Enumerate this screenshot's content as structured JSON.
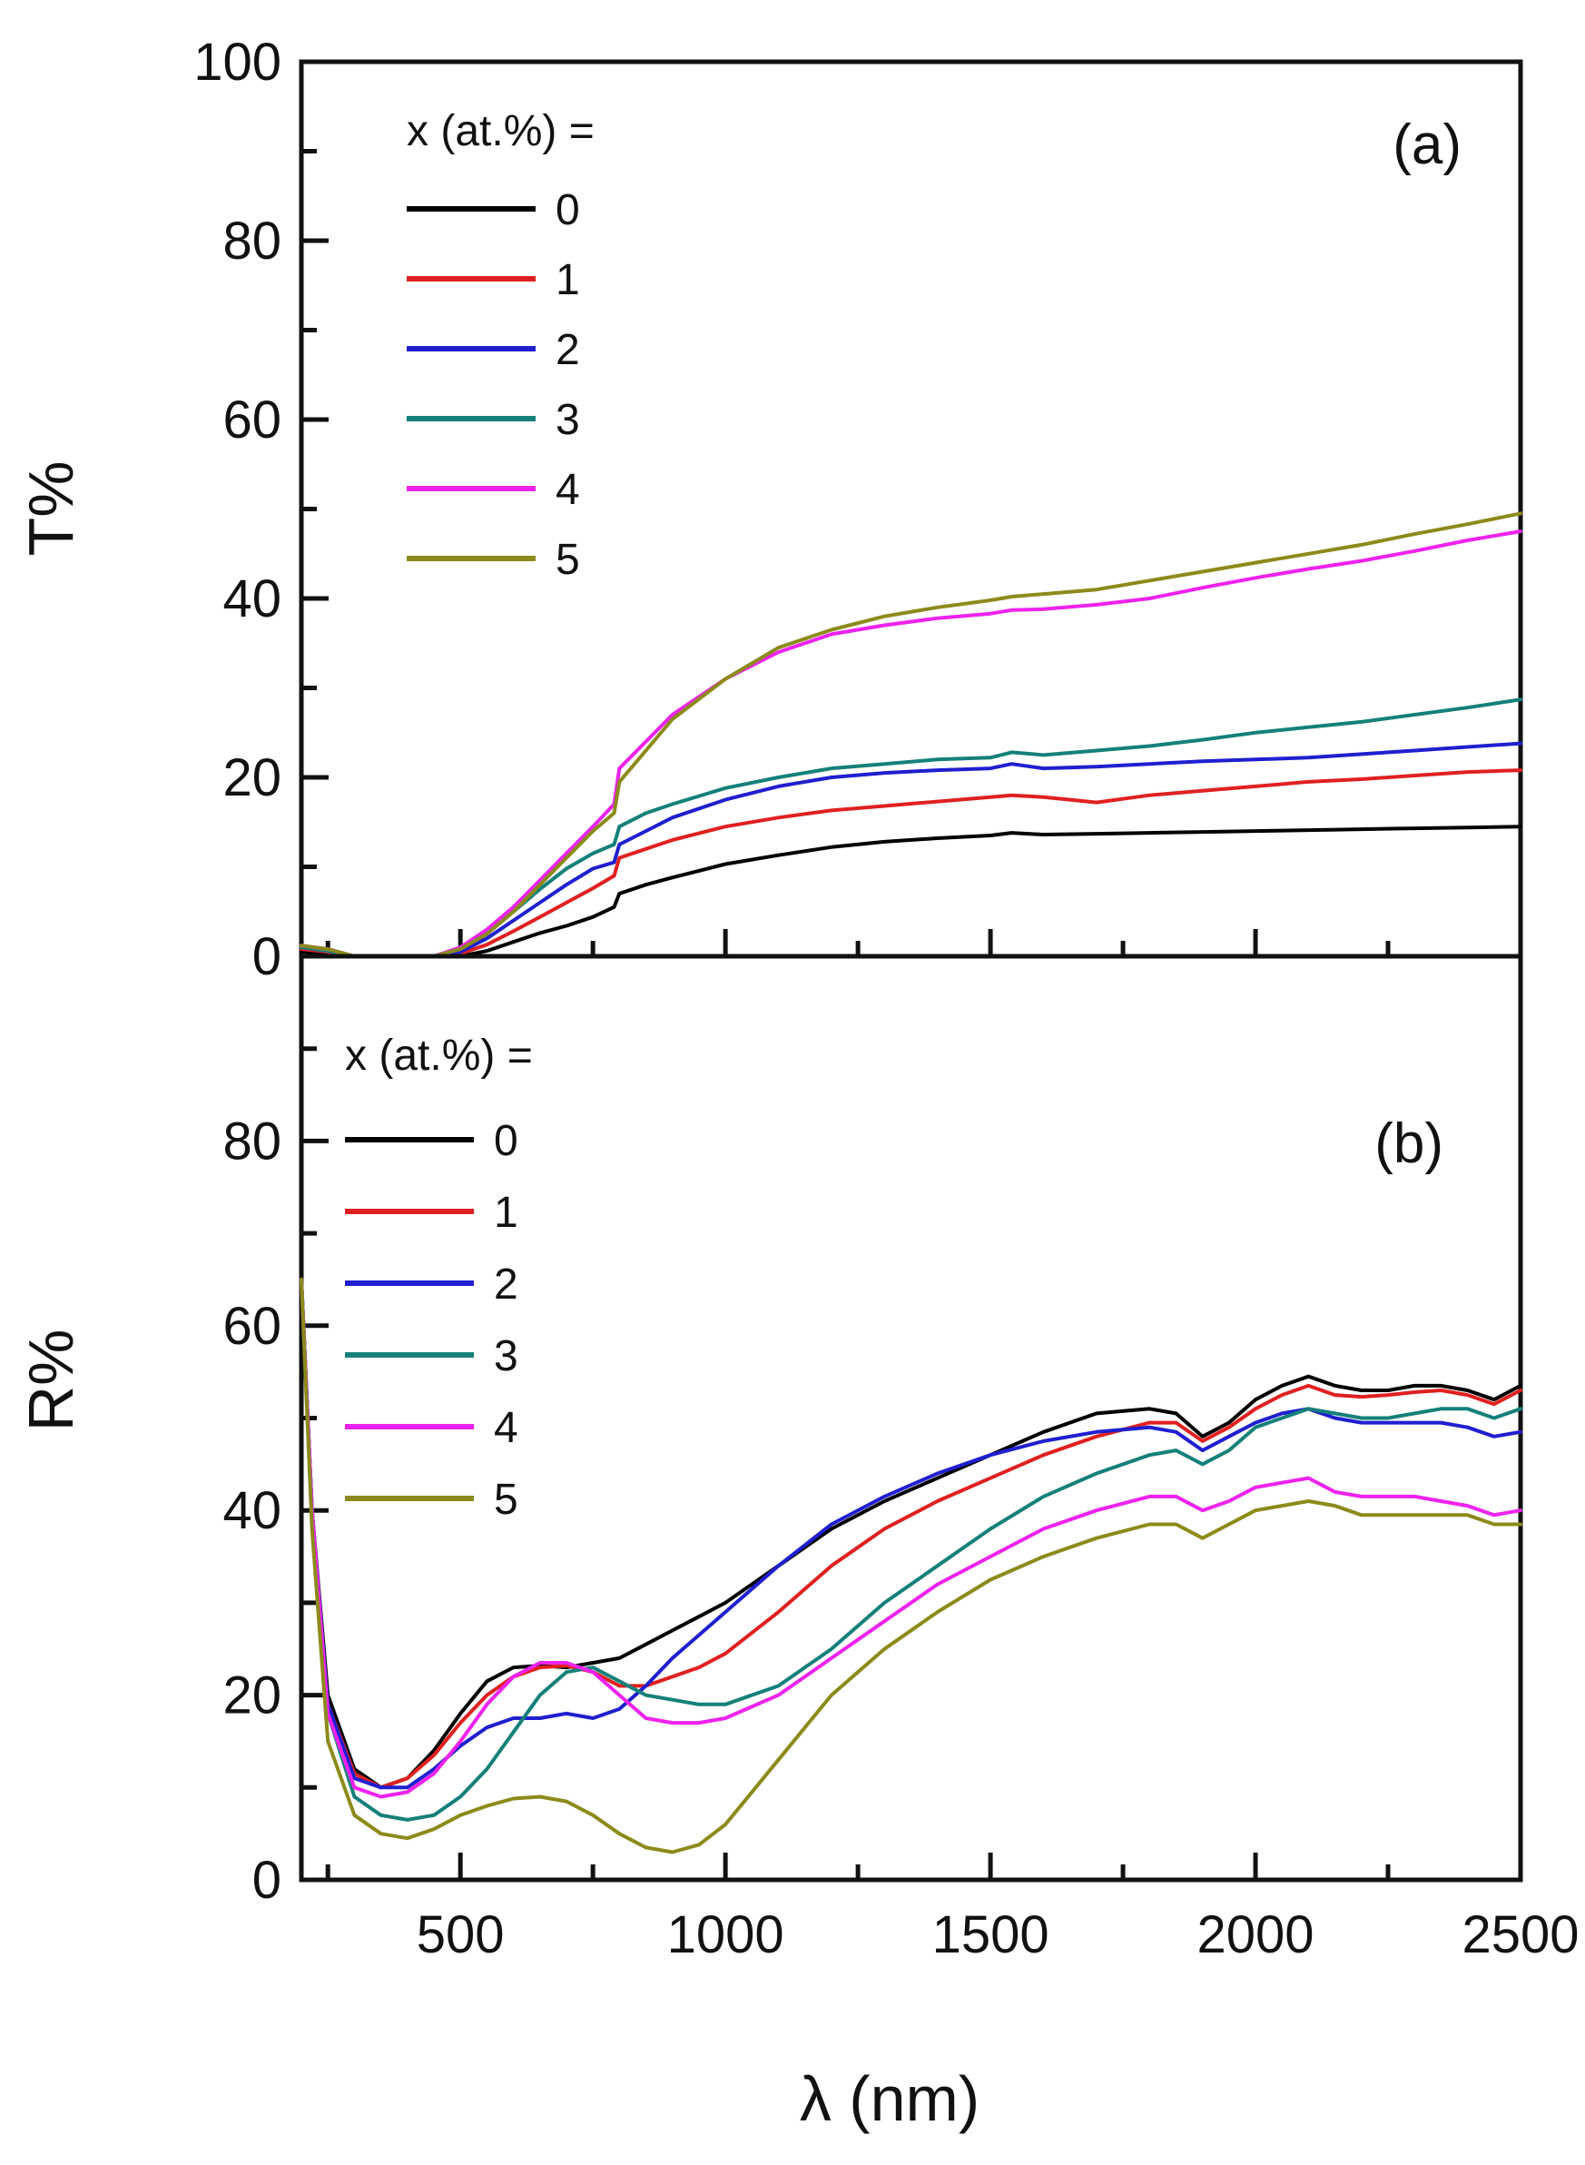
{
  "chart_data": [
    {
      "type": "line",
      "panel_label": "(a)",
      "ylabel": "T%",
      "xlabel": "λ (nm)",
      "xlim": [
        200,
        2500
      ],
      "ylim": [
        0,
        100
      ],
      "y_ticks": [
        0,
        20,
        40,
        60,
        80,
        100
      ],
      "x_ticks": [
        500,
        1000,
        1500,
        2000,
        2500
      ],
      "legend_title": "x (at.%) =",
      "legend_position": "top-left",
      "series": [
        {
          "name": "0",
          "color": "#000000",
          "x": [
            200,
            250,
            300,
            350,
            400,
            450,
            500,
            550,
            600,
            650,
            700,
            750,
            790,
            800,
            850,
            900,
            1000,
            1100,
            1200,
            1300,
            1400,
            1500,
            1540,
            1600,
            1700,
            1800,
            1900,
            2000,
            2100,
            2200,
            2300,
            2400,
            2500
          ],
          "y": [
            0.5,
            0.3,
            0,
            0,
            0,
            0,
            0,
            0.6,
            1.6,
            2.6,
            3.4,
            4.4,
            5.5,
            7,
            8,
            8.8,
            10.3,
            11.3,
            12.2,
            12.8,
            13.2,
            13.5,
            13.8,
            13.6,
            13.7,
            13.8,
            13.9,
            14,
            14.1,
            14.2,
            14.3,
            14.4,
            14.5
          ]
        },
        {
          "name": "1",
          "color": "#e02020",
          "x": [
            200,
            250,
            300,
            350,
            400,
            450,
            500,
            550,
            600,
            650,
            700,
            750,
            790,
            800,
            850,
            900,
            1000,
            1100,
            1200,
            1300,
            1400,
            1500,
            1540,
            1600,
            1650,
            1700,
            1800,
            1900,
            2000,
            2100,
            2200,
            2300,
            2400,
            2500
          ],
          "y": [
            0.8,
            0.5,
            0,
            0,
            0,
            0,
            0.3,
            1.3,
            2.8,
            4.4,
            6,
            7.6,
            9,
            11,
            12,
            13,
            14.5,
            15.5,
            16.3,
            16.8,
            17.3,
            17.8,
            18,
            17.8,
            17.5,
            17.2,
            18,
            18.5,
            19,
            19.5,
            19.8,
            20.2,
            20.6,
            20.8
          ]
        },
        {
          "name": "2",
          "color": "#1f1fd0",
          "x": [
            200,
            250,
            300,
            350,
            400,
            450,
            500,
            550,
            600,
            650,
            700,
            750,
            790,
            800,
            850,
            900,
            1000,
            1100,
            1200,
            1300,
            1400,
            1500,
            1540,
            1600,
            1700,
            1800,
            1900,
            2000,
            2100,
            2200,
            2300,
            2400,
            2500
          ],
          "y": [
            1,
            0.6,
            0,
            0,
            0,
            0,
            0.5,
            2,
            4,
            6,
            8,
            9.8,
            10.5,
            12.5,
            14,
            15.5,
            17.5,
            19,
            20,
            20.5,
            20.8,
            21,
            21.5,
            21,
            21.2,
            21.5,
            21.8,
            22,
            22.2,
            22.6,
            23,
            23.4,
            23.8
          ]
        },
        {
          "name": "3",
          "color": "#15807a",
          "x": [
            200,
            250,
            300,
            350,
            400,
            450,
            500,
            550,
            600,
            650,
            700,
            750,
            790,
            800,
            850,
            900,
            1000,
            1100,
            1200,
            1300,
            1400,
            1500,
            1540,
            1600,
            1700,
            1800,
            1900,
            2000,
            2100,
            2200,
            2300,
            2400,
            2500
          ],
          "y": [
            1,
            0.6,
            0,
            0,
            0,
            0,
            0.8,
            2.5,
            5,
            7.5,
            9.8,
            11.5,
            12.5,
            14.5,
            16,
            17,
            18.8,
            20,
            21,
            21.5,
            22,
            22.2,
            22.8,
            22.5,
            23,
            23.5,
            24.2,
            25,
            25.6,
            26.2,
            27,
            27.8,
            28.7
          ]
        },
        {
          "name": "4",
          "color": "#ee22ee",
          "x": [
            200,
            250,
            300,
            350,
            400,
            450,
            500,
            550,
            600,
            650,
            700,
            750,
            790,
            800,
            850,
            900,
            1000,
            1100,
            1200,
            1300,
            1400,
            1500,
            1540,
            1600,
            1700,
            1800,
            1900,
            2000,
            2100,
            2200,
            2300,
            2400,
            2500
          ],
          "y": [
            1.2,
            0.8,
            0,
            0,
            0,
            0,
            1,
            3,
            5.5,
            8.5,
            11.5,
            14.5,
            17,
            21,
            24,
            27,
            31,
            34,
            36,
            37,
            37.8,
            38.3,
            38.7,
            38.8,
            39.3,
            40,
            41.2,
            42.3,
            43.3,
            44.2,
            45.3,
            46.5,
            47.5
          ]
        },
        {
          "name": "5",
          "color": "#8c8a1a",
          "x": [
            200,
            250,
            300,
            350,
            400,
            450,
            500,
            550,
            600,
            650,
            700,
            750,
            790,
            800,
            850,
            900,
            1000,
            1100,
            1200,
            1300,
            1400,
            1500,
            1540,
            1600,
            1700,
            1800,
            1900,
            2000,
            2100,
            2200,
            2300,
            2400,
            2500
          ],
          "y": [
            1.2,
            0.8,
            0,
            0,
            0,
            0,
            0.8,
            2.5,
            5,
            8,
            11,
            14,
            16,
            19.5,
            23,
            26.5,
            31,
            34.5,
            36.5,
            38,
            39,
            39.8,
            40.2,
            40.5,
            41,
            42,
            43,
            44,
            45,
            46,
            47.2,
            48.3,
            49.5
          ]
        }
      ]
    },
    {
      "type": "line",
      "panel_label": "(b)",
      "ylabel": "R%",
      "xlabel": "λ (nm)",
      "xlim": [
        200,
        2500
      ],
      "ylim": [
        0,
        100
      ],
      "y_ticks": [
        0,
        20,
        40,
        60,
        80
      ],
      "x_ticks": [
        500,
        1000,
        1500,
        2000,
        2500
      ],
      "legend_title": "x (at.%) =",
      "legend_position": "top-left",
      "series": [
        {
          "name": "0",
          "color": "#000000",
          "x": [
            200,
            220,
            250,
            300,
            350,
            400,
            450,
            500,
            550,
            600,
            650,
            700,
            750,
            800,
            850,
            900,
            950,
            1000,
            1100,
            1200,
            1300,
            1400,
            1500,
            1600,
            1700,
            1800,
            1850,
            1900,
            1950,
            2000,
            2050,
            2100,
            2150,
            2200,
            2250,
            2300,
            2350,
            2400,
            2450,
            2500
          ],
          "y": [
            65,
            40,
            20,
            12,
            10,
            11,
            14,
            18,
            21.5,
            23,
            23.2,
            23,
            23.5,
            24,
            25.5,
            27,
            28.5,
            30,
            34,
            38,
            41,
            43.5,
            46,
            48.5,
            50.5,
            51,
            50.5,
            48,
            49.5,
            52,
            53.5,
            54.5,
            53.5,
            53,
            53,
            53.5,
            53.5,
            53,
            52,
            53.5
          ]
        },
        {
          "name": "1",
          "color": "#e02020",
          "x": [
            200,
            220,
            250,
            300,
            350,
            400,
            450,
            500,
            550,
            600,
            650,
            700,
            750,
            800,
            850,
            900,
            950,
            1000,
            1100,
            1200,
            1300,
            1400,
            1500,
            1600,
            1700,
            1800,
            1850,
            1900,
            1950,
            2000,
            2050,
            2100,
            2150,
            2200,
            2250,
            2300,
            2350,
            2400,
            2450,
            2500
          ],
          "y": [
            65,
            40,
            19,
            11.5,
            10,
            11,
            13.5,
            17,
            20,
            22,
            23,
            23.2,
            22.5,
            21,
            21,
            22,
            23,
            24.5,
            29,
            34,
            38,
            41,
            43.5,
            46,
            48,
            49.5,
            49.5,
            47.5,
            49,
            51,
            52.5,
            53.5,
            52.5,
            52.3,
            52.5,
            52.8,
            53,
            52.5,
            51.5,
            53
          ]
        },
        {
          "name": "2",
          "color": "#1f1fd0",
          "x": [
            200,
            220,
            250,
            300,
            350,
            400,
            450,
            500,
            550,
            600,
            650,
            700,
            750,
            800,
            850,
            900,
            950,
            1000,
            1100,
            1200,
            1300,
            1400,
            1500,
            1600,
            1700,
            1800,
            1850,
            1900,
            1950,
            2000,
            2050,
            2100,
            2150,
            2200,
            2250,
            2300,
            2350,
            2400,
            2450,
            2500
          ],
          "y": [
            65,
            40,
            19,
            11,
            10,
            10,
            12,
            14.5,
            16.5,
            17.5,
            17.5,
            18,
            17.5,
            18.5,
            21,
            24,
            26.5,
            29,
            34,
            38.5,
            41.5,
            44,
            46,
            47.5,
            48.5,
            49,
            48.5,
            46.5,
            48,
            49.5,
            50.5,
            51,
            50,
            49.5,
            49.5,
            49.5,
            49.5,
            49,
            48,
            48.5
          ]
        },
        {
          "name": "3",
          "color": "#15807a",
          "x": [
            200,
            220,
            250,
            300,
            350,
            400,
            450,
            500,
            550,
            600,
            650,
            700,
            750,
            800,
            850,
            900,
            950,
            1000,
            1100,
            1200,
            1300,
            1400,
            1500,
            1600,
            1700,
            1800,
            1850,
            1900,
            1950,
            2000,
            2050,
            2100,
            2150,
            2200,
            2250,
            2300,
            2350,
            2400,
            2450,
            2500
          ],
          "y": [
            65,
            40,
            18,
            9,
            7,
            6.5,
            7,
            9,
            12,
            16,
            20,
            22.5,
            23,
            21.5,
            20,
            19.5,
            19,
            19,
            21,
            25,
            30,
            34,
            38,
            41.5,
            44,
            46,
            46.5,
            45,
            46.5,
            49,
            50,
            51,
            50.5,
            50,
            50,
            50.5,
            51,
            51,
            50,
            51
          ]
        },
        {
          "name": "4",
          "color": "#ee22ee",
          "x": [
            200,
            220,
            250,
            300,
            350,
            400,
            450,
            500,
            550,
            600,
            650,
            700,
            750,
            800,
            850,
            900,
            950,
            1000,
            1100,
            1200,
            1300,
            1400,
            1500,
            1600,
            1700,
            1800,
            1850,
            1900,
            1950,
            2000,
            2050,
            2100,
            2150,
            2200,
            2250,
            2300,
            2350,
            2400,
            2450,
            2500
          ],
          "y": [
            65,
            40,
            18,
            10,
            9,
            9.5,
            11.5,
            15,
            19,
            22,
            23.5,
            23.5,
            22.5,
            20,
            17.5,
            17,
            17,
            17.5,
            20,
            24,
            28,
            32,
            35,
            38,
            40,
            41.5,
            41.5,
            40,
            41,
            42.5,
            43,
            43.5,
            42,
            41.5,
            41.5,
            41.5,
            41,
            40.5,
            39.5,
            40
          ]
        },
        {
          "name": "5",
          "color": "#8c8a1a",
          "x": [
            200,
            220,
            250,
            300,
            350,
            400,
            450,
            500,
            550,
            600,
            650,
            700,
            750,
            800,
            850,
            900,
            950,
            1000,
            1100,
            1200,
            1300,
            1400,
            1500,
            1600,
            1700,
            1800,
            1850,
            1900,
            1950,
            2000,
            2050,
            2100,
            2150,
            2200,
            2250,
            2300,
            2350,
            2400,
            2450,
            2500
          ],
          "y": [
            65,
            38,
            15,
            7,
            5,
            4.5,
            5.5,
            7,
            8,
            8.8,
            9,
            8.5,
            7,
            5,
            3.5,
            3,
            3.8,
            6,
            13,
            20,
            25,
            29,
            32.5,
            35,
            37,
            38.5,
            38.5,
            37,
            38.5,
            40,
            40.5,
            41,
            40.5,
            39.5,
            39.5,
            39.5,
            39.5,
            39.5,
            38.5,
            38.5
          ]
        }
      ]
    }
  ]
}
